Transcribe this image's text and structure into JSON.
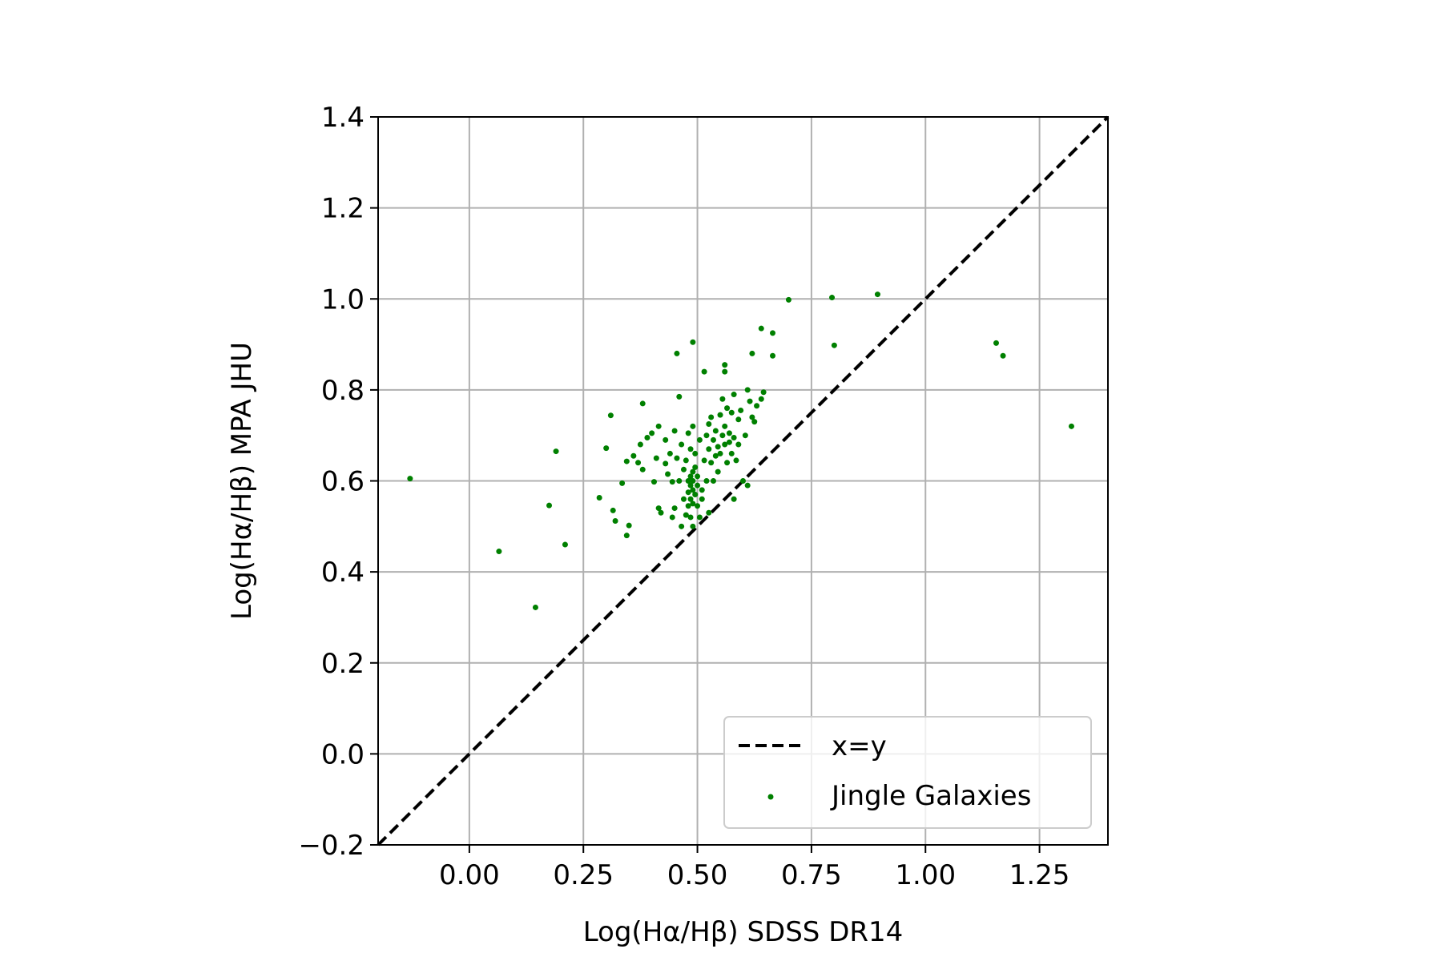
{
  "chart_data": {
    "type": "scatter",
    "xlabel": "Log(Hα/Hβ) SDSS DR14",
    "ylabel": "Log(Hα/Hβ) MPA JHU",
    "xlim": [
      -0.2,
      1.4
    ],
    "ylim": [
      -0.2,
      1.4
    ],
    "x_ticks": [
      0.0,
      0.25,
      0.5,
      0.75,
      1.0,
      1.25
    ],
    "x_tick_labels": [
      "0.00",
      "0.25",
      "0.50",
      "0.75",
      "1.00",
      "1.25"
    ],
    "y_ticks": [
      -0.2,
      0.0,
      0.2,
      0.4,
      0.6,
      0.8,
      1.0,
      1.2,
      1.4
    ],
    "y_tick_labels": [
      "−0.2",
      "0.0",
      "0.2",
      "0.4",
      "0.6",
      "0.8",
      "1.0",
      "1.2",
      "1.4"
    ],
    "grid": true,
    "legend": {
      "placement": "lower-right",
      "entries": [
        {
          "label": "x=y",
          "kind": "line",
          "color": "#000000",
          "style": "dashed"
        },
        {
          "label": "Jingle Galaxies",
          "kind": "marker",
          "color": "#008000"
        }
      ]
    },
    "reference_line": {
      "name": "x=y",
      "x": [
        -0.2,
        1.4
      ],
      "y": [
        -0.2,
        1.4
      ],
      "color": "#000000",
      "style": "dashed"
    },
    "series": [
      {
        "name": "Jingle Galaxies",
        "color": "#008000",
        "points": [
          [
            -0.13,
            0.605
          ],
          [
            0.065,
            0.445
          ],
          [
            0.145,
            0.322
          ],
          [
            0.175,
            0.546
          ],
          [
            0.19,
            0.665
          ],
          [
            0.21,
            0.46
          ],
          [
            0.285,
            0.563
          ],
          [
            0.3,
            0.672
          ],
          [
            0.31,
            0.744
          ],
          [
            0.315,
            0.535
          ],
          [
            0.32,
            0.512
          ],
          [
            0.335,
            0.595
          ],
          [
            0.345,
            0.48
          ],
          [
            0.345,
            0.643
          ],
          [
            0.35,
            0.502
          ],
          [
            0.36,
            0.655
          ],
          [
            0.37,
            0.64
          ],
          [
            0.375,
            0.68
          ],
          [
            0.38,
            0.625
          ],
          [
            0.38,
            0.77
          ],
          [
            0.39,
            0.695
          ],
          [
            0.4,
            0.705
          ],
          [
            0.405,
            0.598
          ],
          [
            0.41,
            0.65
          ],
          [
            0.415,
            0.72
          ],
          [
            0.415,
            0.54
          ],
          [
            0.42,
            0.53
          ],
          [
            0.43,
            0.69
          ],
          [
            0.43,
            0.638
          ],
          [
            0.435,
            0.615
          ],
          [
            0.44,
            0.66
          ],
          [
            0.445,
            0.598
          ],
          [
            0.445,
            0.52
          ],
          [
            0.45,
            0.54
          ],
          [
            0.45,
            0.71
          ],
          [
            0.455,
            0.88
          ],
          [
            0.455,
            0.65
          ],
          [
            0.46,
            0.785
          ],
          [
            0.46,
            0.6
          ],
          [
            0.465,
            0.68
          ],
          [
            0.465,
            0.5
          ],
          [
            0.47,
            0.625
          ],
          [
            0.47,
            0.56
          ],
          [
            0.475,
            0.645
          ],
          [
            0.475,
            0.525
          ],
          [
            0.48,
            0.705
          ],
          [
            0.48,
            0.6
          ],
          [
            0.48,
            0.575
          ],
          [
            0.48,
            0.545
          ],
          [
            0.485,
            0.67
          ],
          [
            0.485,
            0.61
          ],
          [
            0.485,
            0.59
          ],
          [
            0.485,
            0.56
          ],
          [
            0.485,
            0.52
          ],
          [
            0.49,
            0.905
          ],
          [
            0.49,
            0.72
          ],
          [
            0.49,
            0.62
          ],
          [
            0.49,
            0.6
          ],
          [
            0.49,
            0.58
          ],
          [
            0.49,
            0.55
          ],
          [
            0.49,
            0.5
          ],
          [
            0.495,
            0.66
          ],
          [
            0.495,
            0.63
          ],
          [
            0.495,
            0.57
          ],
          [
            0.5,
            0.61
          ],
          [
            0.5,
            0.59
          ],
          [
            0.5,
            0.545
          ],
          [
            0.505,
            0.69
          ],
          [
            0.505,
            0.52
          ],
          [
            0.51,
            0.58
          ],
          [
            0.51,
            0.56
          ],
          [
            0.515,
            0.84
          ],
          [
            0.515,
            0.645
          ],
          [
            0.52,
            0.7
          ],
          [
            0.52,
            0.6
          ],
          [
            0.525,
            0.725
          ],
          [
            0.525,
            0.67
          ],
          [
            0.525,
            0.53
          ],
          [
            0.53,
            0.74
          ],
          [
            0.53,
            0.64
          ],
          [
            0.535,
            0.69
          ],
          [
            0.535,
            0.6
          ],
          [
            0.54,
            0.655
          ],
          [
            0.54,
            0.71
          ],
          [
            0.545,
            0.675
          ],
          [
            0.545,
            0.62
          ],
          [
            0.55,
            0.66
          ],
          [
            0.55,
            0.745
          ],
          [
            0.555,
            0.78
          ],
          [
            0.555,
            0.7
          ],
          [
            0.56,
            0.855
          ],
          [
            0.56,
            0.84
          ],
          [
            0.56,
            0.72
          ],
          [
            0.56,
            0.68
          ],
          [
            0.565,
            0.76
          ],
          [
            0.565,
            0.64
          ],
          [
            0.57,
            0.705
          ],
          [
            0.57,
            0.685
          ],
          [
            0.575,
            0.75
          ],
          [
            0.575,
            0.66
          ],
          [
            0.58,
            0.79
          ],
          [
            0.58,
            0.695
          ],
          [
            0.58,
            0.56
          ],
          [
            0.585,
            0.645
          ],
          [
            0.59,
            0.735
          ],
          [
            0.59,
            0.68
          ],
          [
            0.595,
            0.755
          ],
          [
            0.6,
            0.6
          ],
          [
            0.605,
            0.7
          ],
          [
            0.61,
            0.8
          ],
          [
            0.61,
            0.59
          ],
          [
            0.615,
            0.775
          ],
          [
            0.62,
            0.88
          ],
          [
            0.62,
            0.74
          ],
          [
            0.625,
            0.73
          ],
          [
            0.63,
            0.765
          ],
          [
            0.64,
            0.935
          ],
          [
            0.64,
            0.78
          ],
          [
            0.645,
            0.795
          ],
          [
            0.665,
            0.925
          ],
          [
            0.665,
            0.875
          ],
          [
            0.7,
            0.998
          ],
          [
            0.795,
            1.003
          ],
          [
            0.8,
            0.898
          ],
          [
            0.895,
            1.01
          ],
          [
            1.155,
            0.903
          ],
          [
            1.17,
            0.875
          ],
          [
            1.32,
            0.72
          ]
        ]
      }
    ]
  }
}
